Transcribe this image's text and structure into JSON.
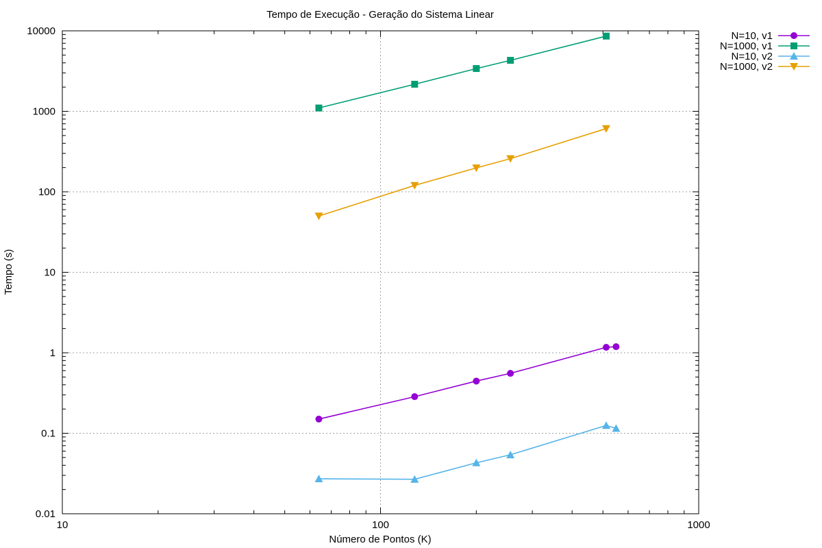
{
  "chart_data": {
    "type": "line",
    "title": "Tempo de Execução - Geração do Sistema Linear",
    "xlabel": "Número de Pontos (K)",
    "ylabel": "Tempo (s)",
    "xscale": "log",
    "yscale": "log",
    "xlim": [
      10,
      1000
    ],
    "ylim": [
      0.01,
      10000
    ],
    "grid": "dotted, major ticks",
    "legend_position": "top-right, outside plot",
    "x_ticks": [
      "10",
      "100",
      "1000"
    ],
    "y_ticks": [
      "0.01",
      "0.1",
      "1",
      "10",
      "100",
      "1000",
      "10000"
    ],
    "series": [
      {
        "name": "N=10, v1",
        "color": "#9400d3",
        "marker": "circle",
        "x": [
          64,
          128,
          200,
          256,
          512,
          550
        ],
        "y": [
          0.15,
          0.285,
          0.445,
          0.555,
          1.17,
          1.19
        ]
      },
      {
        "name": "N=1000, v1",
        "color": "#009e73",
        "marker": "square",
        "x": [
          64,
          128,
          200,
          256,
          512
        ],
        "y": [
          1100,
          2170,
          3400,
          4300,
          8600
        ]
      },
      {
        "name": "N=10, v2",
        "color": "#56b4e9",
        "marker": "triangle-up",
        "x": [
          64,
          128,
          200,
          256,
          512,
          550
        ],
        "y": [
          0.0272,
          0.0268,
          0.043,
          0.054,
          0.125,
          0.115
        ]
      },
      {
        "name": "N=1000, v2",
        "color": "#e69f00",
        "marker": "triangle-down",
        "x": [
          64,
          128,
          200,
          256,
          512
        ],
        "y": [
          50,
          120,
          198,
          258,
          610
        ]
      }
    ]
  }
}
